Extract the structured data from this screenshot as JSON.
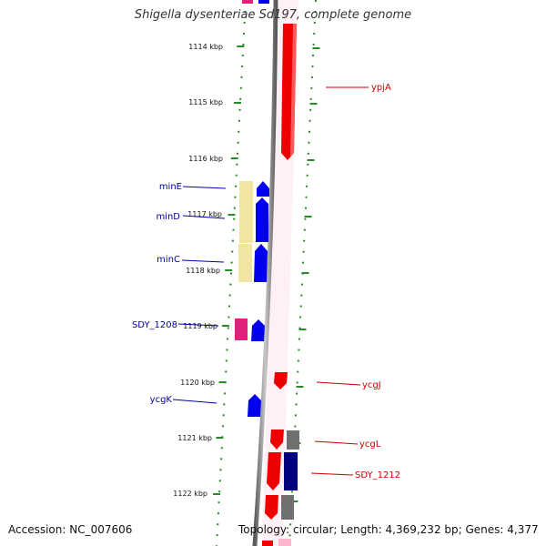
{
  "title": "Shigella dysenteriae Sd197, complete genome",
  "footer": {
    "accession": "Accession: NC_007606",
    "topology": "Topology: circular; Length: 4,369,232 bp; Genes: 4,377"
  },
  "ticks": [
    "1114 kbp",
    "1115 kbp",
    "1116 kbp",
    "1117 kbp",
    "1118 kbp",
    "1119 kbp",
    "1120 kbp",
    "1121 kbp",
    "1122 kbp"
  ],
  "gene_labels": {
    "left": [
      "minE",
      "minD",
      "minC",
      "SDY_1208",
      "ycgK"
    ],
    "right": [
      "ypjA",
      "ycgJ",
      "ycgL",
      "SDY_1212"
    ]
  },
  "colors": {
    "forward_gene": "#ee0000",
    "reverse_gene": "#0000ee",
    "cog_yellow": "#f0e6a0",
    "cog_pink": "#e0207a",
    "cog_gray": "#707070",
    "cog_navy": "#000080",
    "backbone": "#8a8a8a",
    "tick_green": "#2a8a2a",
    "left_label": "#0000aa",
    "right_label": "#cc0000"
  }
}
